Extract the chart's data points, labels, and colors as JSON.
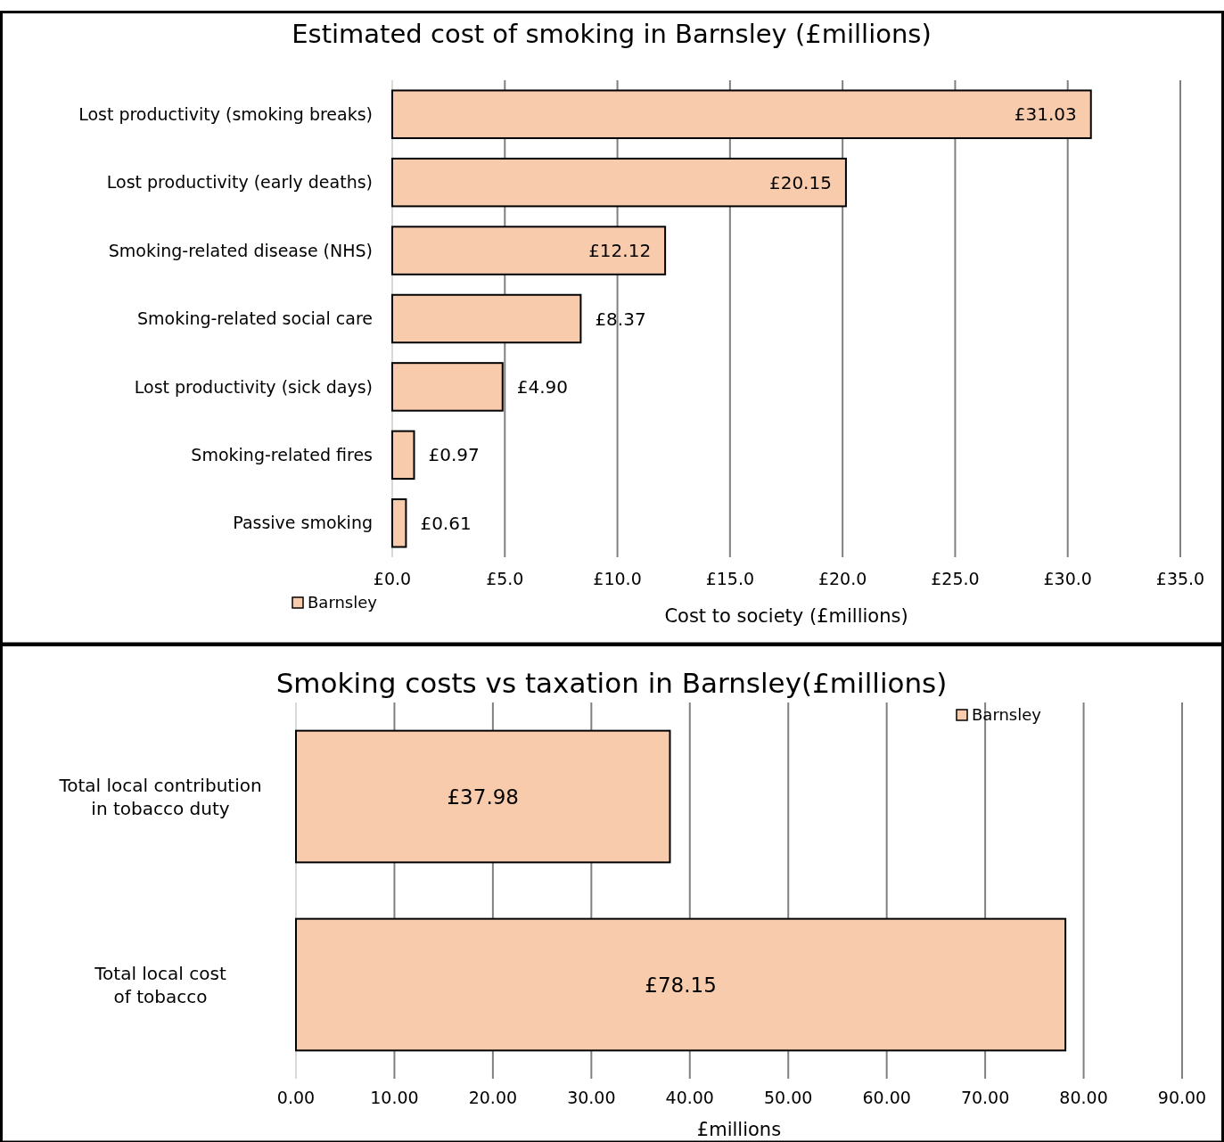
{
  "chart_data": [
    {
      "type": "bar",
      "orientation": "horizontal",
      "title": "Estimated cost of smoking in Barnsley (£millions)",
      "xlabel": "Cost to society (£millions)",
      "categories": [
        "Lost productivity (smoking breaks)",
        "Lost productivity (early deaths)",
        "Smoking-related disease (NHS)",
        "Smoking-related social care",
        "Lost productivity (sick days)",
        "Smoking-related fires",
        "Passive smoking"
      ],
      "series": [
        {
          "name": "Barnsley",
          "color": "#f8cbad",
          "values": [
            31.03,
            20.15,
            12.12,
            8.37,
            4.9,
            0.97,
            0.61
          ],
          "value_labels": [
            "£31.03",
            "£20.15",
            "£12.12",
            "£8.37",
            "£4.90",
            "£0.97",
            "£0.61"
          ]
        }
      ],
      "xlim": [
        0,
        35
      ],
      "xticks": [
        {
          "value": 0,
          "label": "£0.0"
        },
        {
          "value": 5,
          "label": "£5.0"
        },
        {
          "value": 10,
          "label": "£10.0"
        },
        {
          "value": 15,
          "label": "£15.0"
        },
        {
          "value": 20,
          "label": "£20.0"
        },
        {
          "value": 25,
          "label": "£25.0"
        },
        {
          "value": 30,
          "label": "£30.0"
        },
        {
          "value": 35,
          "label": "£35.0"
        }
      ],
      "grid": "x",
      "legend": "bottom left"
    },
    {
      "type": "bar",
      "orientation": "horizontal",
      "title": "Smoking costs vs taxation in Barnsley(£millions)",
      "xlabel": "£millions",
      "categories": [
        "Total local contribution\nin tobacco duty",
        "Total local cost\nof tobacco"
      ],
      "series": [
        {
          "name": "Barnsley",
          "color": "#f8cbad",
          "values": [
            37.98,
            78.15
          ],
          "value_labels": [
            "£37.98",
            "£78.15"
          ]
        }
      ],
      "xlim": [
        0,
        90
      ],
      "xticks": [
        {
          "value": 0,
          "label": "0.00"
        },
        {
          "value": 10,
          "label": "10.00"
        },
        {
          "value": 20,
          "label": "20.00"
        },
        {
          "value": 30,
          "label": "30.00"
        },
        {
          "value": 40,
          "label": "40.00"
        },
        {
          "value": 50,
          "label": "50.00"
        },
        {
          "value": 60,
          "label": "60.00"
        },
        {
          "value": 70,
          "label": "70.00"
        },
        {
          "value": 80,
          "label": "80.00"
        },
        {
          "value": 90,
          "label": "90.00"
        }
      ],
      "grid": "x",
      "legend": "top right"
    }
  ]
}
